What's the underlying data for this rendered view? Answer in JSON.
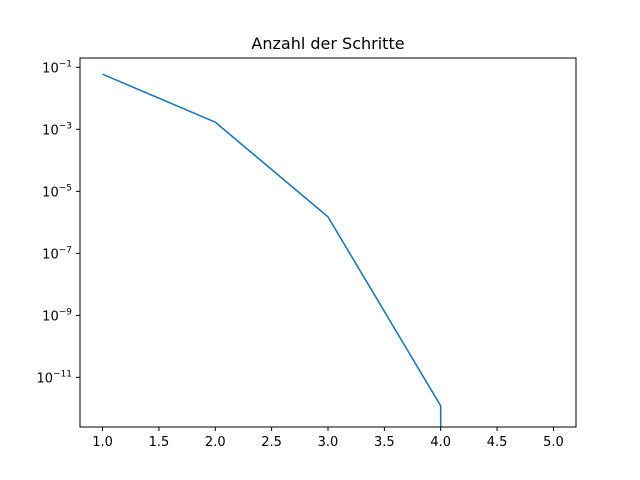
{
  "chart_data": {
    "type": "line",
    "title": "Anzahl der Schritte",
    "xlabel": "",
    "ylabel": "",
    "yscale": "log",
    "xlim": [
      0.8,
      5.2
    ],
    "ylim_log10": [
      -12.6,
      -0.7
    ],
    "grid": false,
    "x_ticks": [
      1.0,
      1.5,
      2.0,
      2.5,
      3.0,
      3.5,
      4.0,
      4.5,
      5.0
    ],
    "x_tick_labels": [
      "1.0",
      "1.5",
      "2.0",
      "2.5",
      "3.0",
      "3.5",
      "4.0",
      "4.5",
      "5.0"
    ],
    "y_ticks": [
      {
        "base": "10",
        "exp": "−1",
        "value": 0.1
      },
      {
        "base": "10",
        "exp": "−3",
        "value": 0.001
      },
      {
        "base": "10",
        "exp": "−5",
        "value": 1e-05
      },
      {
        "base": "10",
        "exp": "−7",
        "value": 1e-07
      },
      {
        "base": "10",
        "exp": "−9",
        "value": 1e-09
      },
      {
        "base": "10",
        "exp": "−11",
        "value": 1e-11
      }
    ],
    "series": [
      {
        "color": "#1f77b4",
        "x": [
          1,
          2,
          3,
          4,
          4
        ],
        "y": [
          0.06,
          0.0017,
          1.5e-06,
          1.2e-12,
          0
        ]
      }
    ]
  }
}
